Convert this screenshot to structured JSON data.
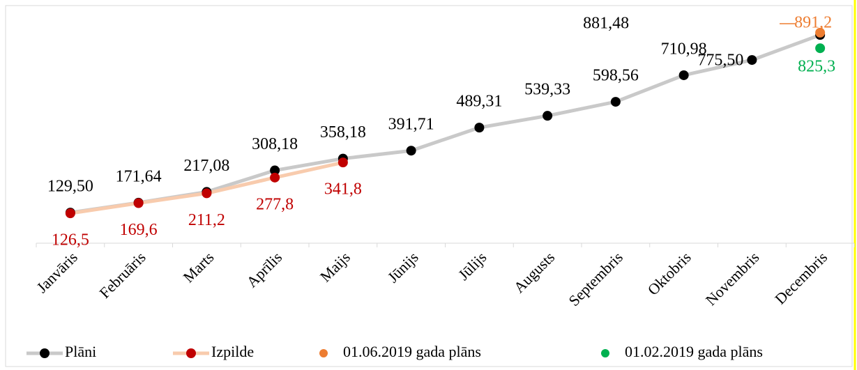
{
  "chart_data": {
    "type": "line",
    "categories": [
      "Janvāris",
      "Februāris",
      "Marts",
      "Aprīlis",
      "Maijs",
      "Jūnijs",
      "Jūlijs",
      "Augusts",
      "Septembris",
      "Oktobris",
      "Novembris",
      "Decembris"
    ],
    "ylim": [
      0,
      1000
    ],
    "legend": "bottom",
    "series": [
      {
        "name": "Plāni",
        "color": "#c9c9c9",
        "marker_color": "#000000",
        "label_color": "#000000",
        "show_line": true,
        "values": [
          129.5,
          171.64,
          217.08,
          308.18,
          358.18,
          391.71,
          489.31,
          539.33,
          598.56,
          710.98,
          775.5,
          881.48
        ],
        "value_labels": [
          "129,50",
          "171,64",
          "217,08",
          "308,18",
          "358,18",
          "391,71",
          "489,31",
          "539,33",
          "598,56",
          "710,98",
          "775,50",
          "881,48"
        ]
      },
      {
        "name": "Izpilde",
        "color": "#f8cbad",
        "marker_color": "#c00000",
        "label_color": "#c00000",
        "show_line": true,
        "values": [
          126.5,
          169.6,
          211.2,
          277.8,
          341.8,
          null,
          null,
          null,
          null,
          null,
          null,
          null
        ],
        "value_labels": [
          "126,5",
          "169,6",
          "211,2",
          "277,8",
          "341,8",
          null,
          null,
          null,
          null,
          null,
          null,
          null
        ]
      },
      {
        "name": "01.06.2019 gada plāns",
        "color": "#ed7d31",
        "marker_color": "#ed7d31",
        "label_color": "#ed7d31",
        "show_line": false,
        "values": [
          null,
          null,
          null,
          null,
          null,
          null,
          null,
          null,
          null,
          null,
          null,
          891.2
        ],
        "value_labels": [
          null,
          null,
          null,
          null,
          null,
          null,
          null,
          null,
          null,
          null,
          null,
          "891,2"
        ]
      },
      {
        "name": "01.02.2019 gada plāns",
        "color": "#00b050",
        "marker_color": "#00b050",
        "label_color": "#00b050",
        "show_line": false,
        "values": [
          null,
          null,
          null,
          null,
          null,
          null,
          null,
          null,
          null,
          null,
          null,
          825.3
        ],
        "value_labels": [
          null,
          null,
          null,
          null,
          null,
          null,
          null,
          null,
          null,
          null,
          null,
          "825,3"
        ]
      }
    ]
  }
}
